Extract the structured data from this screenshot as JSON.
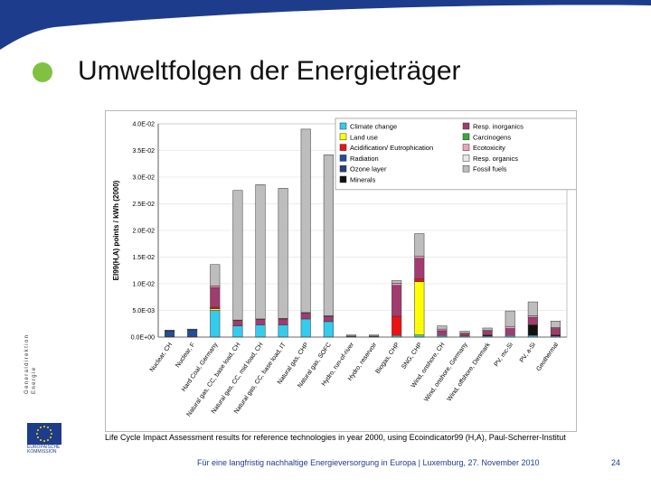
{
  "slide": {
    "title": "Umweltfolgen der Energieträger",
    "side_text_top": "Generaldirektion",
    "side_text_bottom": "Energie",
    "eu_logo": "EU flag logo",
    "eu_label": "EUROPÄISCHE KOMMISSION",
    "caption": "Life Cycle Impact Assessment results for reference technologies in year 2000, using Ecoindicator99 (H,A), Paul-Scherrer-Institut",
    "footer": "Für eine langfristig nachhaltige Energieversorgung in Europa   |   Luxemburg, 27. November 2010",
    "page_number": "24",
    "colors": {
      "banner": "#1d3c8c",
      "bullet": "#7fc241"
    }
  },
  "chart_data": {
    "type": "bar",
    "stacked": true,
    "ylabel": "EI99(H,A) points / kWh (2000)",
    "ylim": [
      0,
      0.04
    ],
    "yticks": [
      "0.0E+00",
      "5.0E-03",
      "1.0E-02",
      "1.5E-02",
      "2.0E-02",
      "2.5E-02",
      "3.0E-02",
      "3.5E-02",
      "4.0E-02"
    ],
    "ytick_values": [
      0,
      0.005,
      0.01,
      0.015,
      0.02,
      0.025,
      0.03,
      0.035,
      0.04
    ],
    "legend_position": "top-right",
    "categories": [
      "Nuclear, CH",
      "Nuclear, F",
      "Hard Coal, Germany",
      "Natural gas, CC, base load, CH",
      "Natural gas, CC, mid load, CH",
      "Natural gas, CC, base load, IT",
      "Natural gas, CHP",
      "Natural gas, SOFC",
      "Hydro, run-of-river",
      "Hydro, reservoir",
      "Biogas, CHP",
      "SNG, CHP",
      "Wind, onshore, CH",
      "Wind, onshore, Germany",
      "Wind, offshore, Denmark",
      "PV, mc-Si",
      "PV, a-Si",
      "Geothermal"
    ],
    "series": [
      {
        "name": "Climate change",
        "color": "#33ccee",
        "values": [
          0.0001,
          0.0001,
          0.005,
          0.0021,
          0.0023,
          0.0023,
          0.0034,
          0.0029,
          0.0001,
          0.0001,
          0.0003,
          0.0004,
          0.0003,
          0.0002,
          0.0002,
          0.0003,
          0.0003,
          0.0002
        ]
      },
      {
        "name": "Land use",
        "color": "#ffff00",
        "values": [
          0,
          0,
          0.0003,
          0,
          0,
          0,
          0,
          0,
          0,
          0,
          0,
          0.01,
          0,
          0,
          0,
          0,
          0,
          0
        ]
      },
      {
        "name": "Acidification/ Eutrophication",
        "color": "#ee1111",
        "values": [
          0,
          0,
          0.0003,
          0,
          0,
          0,
          0,
          0,
          0,
          0,
          0.0036,
          0.0005,
          0,
          0,
          0,
          0,
          0,
          0
        ]
      },
      {
        "name": "Radiation",
        "color": "#1f4e9a",
        "values": [
          0.001,
          0.0012,
          0,
          0,
          0,
          0,
          0,
          0,
          0,
          0,
          0,
          0,
          0,
          0,
          0,
          0,
          0,
          0
        ]
      },
      {
        "name": "Ozone layer",
        "color": "#2a3f80",
        "values": [
          0,
          0,
          0,
          0,
          0,
          0,
          0,
          0,
          0,
          0,
          0,
          0,
          0,
          0,
          0,
          0,
          0,
          0
        ]
      },
      {
        "name": "Minerals",
        "color": "#111111",
        "values": [
          0,
          0,
          0,
          0,
          0,
          0,
          0,
          0,
          0,
          0,
          0,
          0,
          0,
          0,
          0.0002,
          0,
          0.002,
          0.0002
        ]
      },
      {
        "name": "Resp. inorganics",
        "color": "#a23b6e",
        "values": [
          0.0001,
          0.0001,
          0.0037,
          0.001,
          0.001,
          0.0011,
          0.0011,
          0.001,
          0.0001,
          0.0001,
          0.0058,
          0.0039,
          0.0009,
          0.0004,
          0.0007,
          0.0013,
          0.0014,
          0.0012
        ]
      },
      {
        "name": "Carcinogens",
        "color": "#2fae3a",
        "values": [
          0,
          0,
          0,
          0,
          0,
          0,
          0,
          0,
          0,
          0,
          0,
          0,
          0,
          0,
          0,
          0,
          0,
          0
        ]
      },
      {
        "name": "Ecotoxicity",
        "color": "#f2a0c0",
        "values": [
          0,
          0,
          0.0003,
          0.0001,
          0.0001,
          0.0001,
          0.0001,
          0.0001,
          0,
          0,
          0.0004,
          0.0004,
          0.0003,
          0.0002,
          0.0002,
          0.0004,
          0.0003,
          0.0002
        ]
      },
      {
        "name": "Resp. organics",
        "color": "#e8e8e8",
        "values": [
          0,
          0,
          0,
          0,
          0,
          0,
          0,
          0,
          0,
          0,
          0,
          0,
          0,
          0,
          0,
          0,
          0,
          0
        ]
      },
      {
        "name": "Fossil fuels",
        "color": "#bdbdbd",
        "values": [
          0.0001,
          0.0001,
          0.004,
          0.0243,
          0.0252,
          0.0244,
          0.0344,
          0.0302,
          0.0002,
          0.0002,
          0.0005,
          0.0042,
          0.0006,
          0.0003,
          0.0004,
          0.0029,
          0.0026,
          0.0012
        ]
      }
    ]
  }
}
